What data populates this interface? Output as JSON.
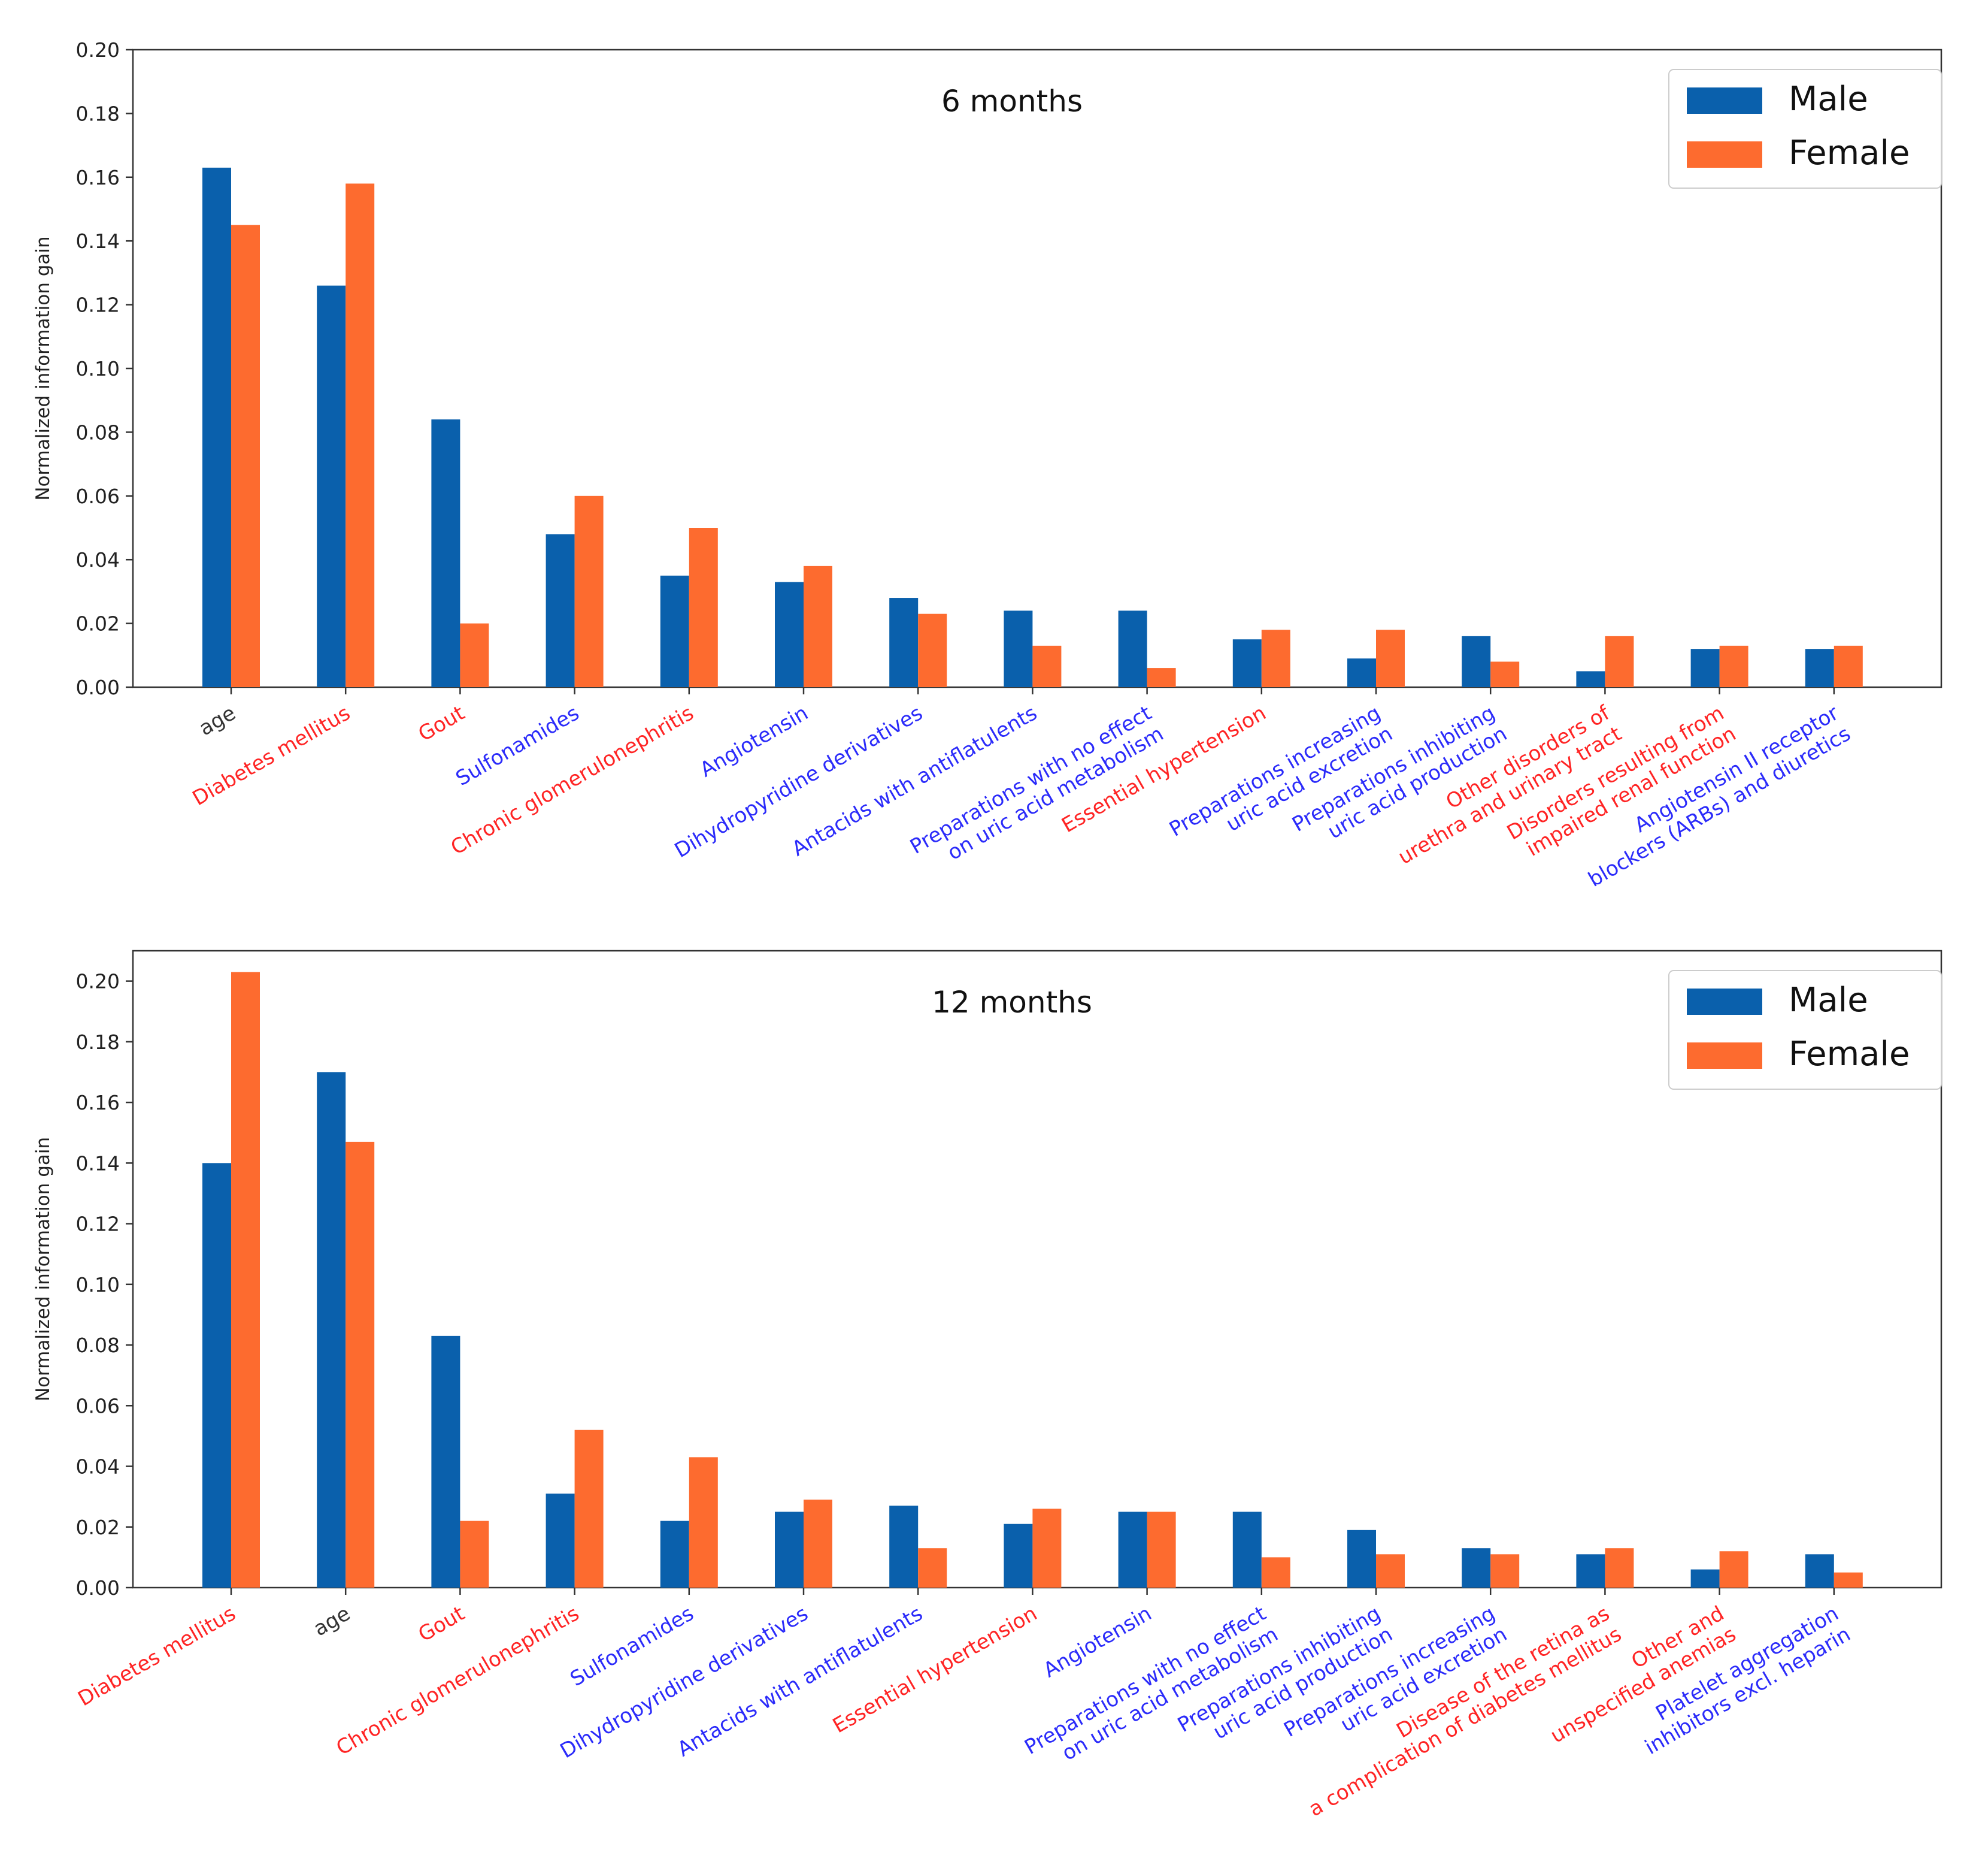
{
  "colors": {
    "male": "#0a60ac",
    "female": "#fd6b2f",
    "label_red": "#ff2424",
    "label_blue": "#2b2bfa",
    "label_black": "#333333",
    "axis": "#333333"
  },
  "chart_data": [
    {
      "type": "bar",
      "title": "6 months",
      "xlabel": "",
      "ylabel": "Normalized information gain",
      "ylim": [
        0,
        0.2
      ],
      "yticks": [
        "0.00",
        "0.02",
        "0.04",
        "0.06",
        "0.08",
        "0.10",
        "0.12",
        "0.14",
        "0.16",
        "0.18",
        "0.20"
      ],
      "legend_position": "top-right",
      "categories": [
        {
          "label": "age",
          "color": "black"
        },
        {
          "label": "Diabetes mellitus",
          "color": "red"
        },
        {
          "label": "Gout",
          "color": "red"
        },
        {
          "label": "Sulfonamides",
          "color": "blue"
        },
        {
          "label": "Chronic glomerulonephritis",
          "color": "red"
        },
        {
          "label": "Angiotensin",
          "color": "blue"
        },
        {
          "label": "Dihydropyridine derivatives",
          "color": "blue"
        },
        {
          "label": "Antacids with antiflatulents",
          "color": "blue"
        },
        {
          "label": "Preparations with no effect\non uric acid metabolism",
          "color": "blue"
        },
        {
          "label": "Essential hypertension",
          "color": "red"
        },
        {
          "label": "Preparations increasing\nuric acid excretion",
          "color": "blue"
        },
        {
          "label": "Preparations inhibiting\nuric acid production",
          "color": "blue"
        },
        {
          "label": "Other disorders of\nurethra and urinary tract",
          "color": "red"
        },
        {
          "label": "Disorders resulting from\nimpaired renal function",
          "color": "red"
        },
        {
          "label": "Angiotensin II receptor\nblockers (ARBs) and diuretics",
          "color": "blue"
        }
      ],
      "series": [
        {
          "name": "Male",
          "values": [
            0.163,
            0.126,
            0.084,
            0.048,
            0.035,
            0.033,
            0.028,
            0.024,
            0.024,
            0.015,
            0.009,
            0.016,
            0.005,
            0.012,
            0.012
          ]
        },
        {
          "name": "Female",
          "values": [
            0.145,
            0.158,
            0.02,
            0.06,
            0.05,
            0.038,
            0.023,
            0.013,
            0.006,
            0.018,
            0.018,
            0.008,
            0.016,
            0.013,
            0.013
          ]
        }
      ]
    },
    {
      "type": "bar",
      "title": "12 months",
      "xlabel": "",
      "ylabel": "Normalized information gain",
      "ylim": [
        0,
        0.21
      ],
      "yticks": [
        "0.00",
        "0.02",
        "0.04",
        "0.06",
        "0.08",
        "0.10",
        "0.12",
        "0.14",
        "0.16",
        "0.18",
        "0.20"
      ],
      "legend_position": "top-right",
      "categories": [
        {
          "label": "Diabetes mellitus",
          "color": "red"
        },
        {
          "label": "age",
          "color": "black"
        },
        {
          "label": "Gout",
          "color": "red"
        },
        {
          "label": "Chronic glomerulonephritis",
          "color": "red"
        },
        {
          "label": "Sulfonamides",
          "color": "blue"
        },
        {
          "label": "Dihydropyridine derivatives",
          "color": "blue"
        },
        {
          "label": "Antacids with antiflatulents",
          "color": "blue"
        },
        {
          "label": "Essential hypertension",
          "color": "red"
        },
        {
          "label": "Angiotensin",
          "color": "blue"
        },
        {
          "label": "Preparations with no effect\non uric acid metabolism",
          "color": "blue"
        },
        {
          "label": "Preparations inhibiting\nuric acid production",
          "color": "blue"
        },
        {
          "label": "Preparations increasing\nuric acid excretion",
          "color": "blue"
        },
        {
          "label": "Disease of the retina as\na complication of diabetes mellitus",
          "color": "red"
        },
        {
          "label": "Other and\nunspecified anemias",
          "color": "red"
        },
        {
          "label": "Platelet aggregation\ninhibitors excl. heparin",
          "color": "blue"
        }
      ],
      "series": [
        {
          "name": "Male",
          "values": [
            0.14,
            0.17,
            0.083,
            0.031,
            0.022,
            0.025,
            0.027,
            0.021,
            0.025,
            0.025,
            0.019,
            0.013,
            0.011,
            0.006,
            0.011
          ]
        },
        {
          "name": "Female",
          "values": [
            0.203,
            0.147,
            0.022,
            0.052,
            0.043,
            0.029,
            0.013,
            0.026,
            0.025,
            0.01,
            0.011,
            0.011,
            0.013,
            0.012,
            0.005
          ]
        }
      ]
    }
  ]
}
